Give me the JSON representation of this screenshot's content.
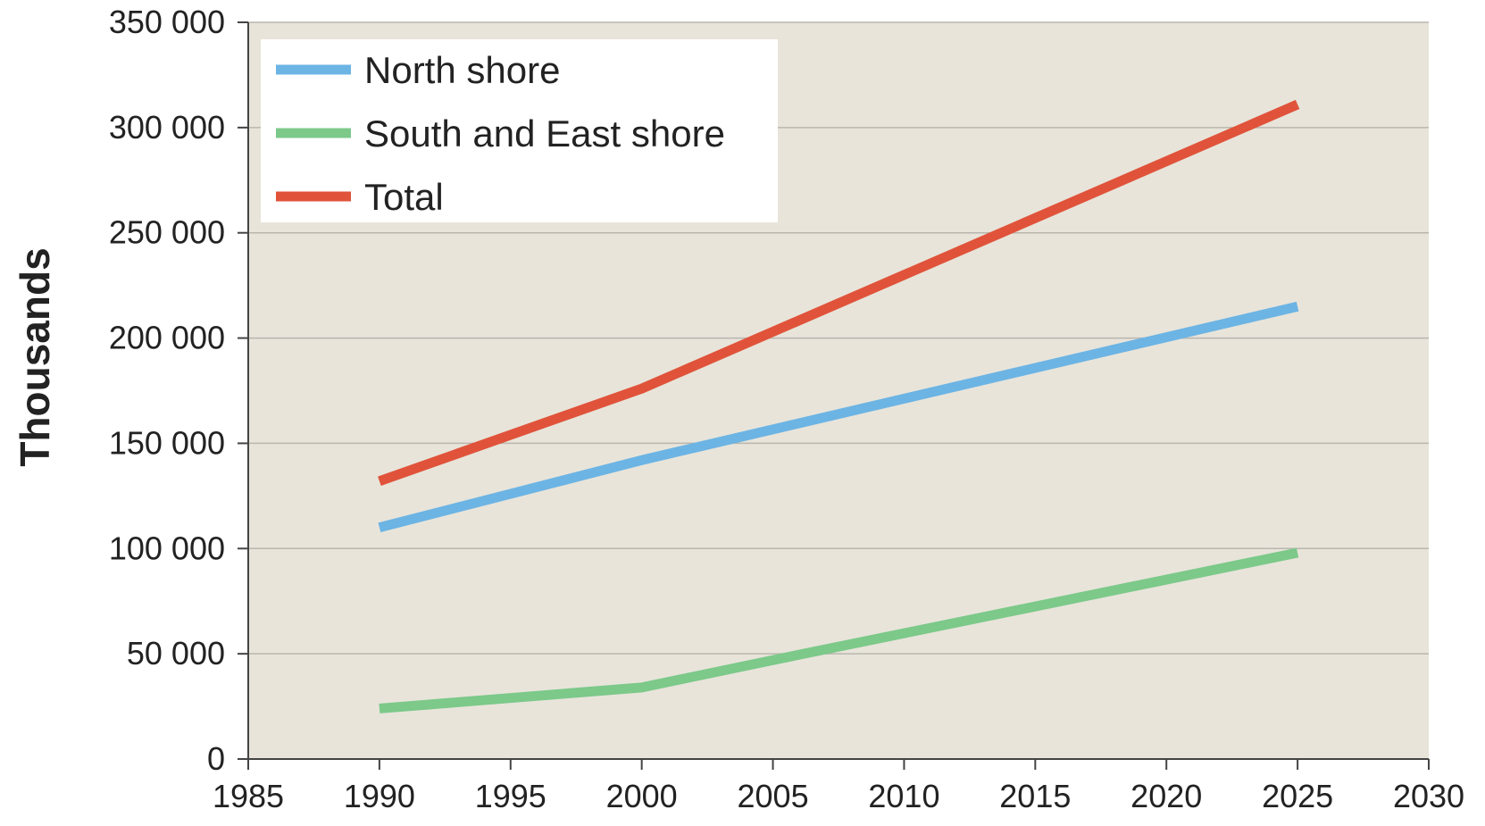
{
  "chart_data": {
    "type": "line",
    "title": "",
    "xlabel": "",
    "ylabel": "Thousands",
    "xlim": [
      1985,
      2030
    ],
    "ylim": [
      0,
      350000
    ],
    "x_ticks": [
      1985,
      1990,
      1995,
      2000,
      2005,
      2010,
      2015,
      2020,
      2025,
      2030
    ],
    "x_tick_labels": [
      "1985",
      "1990",
      "1995",
      "2000",
      "2005",
      "2010",
      "2015",
      "2020",
      "2025",
      "2030"
    ],
    "y_ticks": [
      0,
      50000,
      100000,
      150000,
      200000,
      250000,
      300000,
      350000
    ],
    "y_tick_labels": [
      "0",
      "50 000",
      "100 000",
      "150 000",
      "200 000",
      "250 000",
      "300 000",
      "350 000"
    ],
    "grid": "horizontal",
    "legend_position": "top-left",
    "plot_background": "#e8e4da",
    "series": [
      {
        "name": "North shore",
        "color": "#6cb4e4",
        "x": [
          1990,
          2000,
          2025
        ],
        "y": [
          110000,
          142000,
          215000
        ]
      },
      {
        "name": "South and East shore",
        "color": "#7cc98a",
        "x": [
          1990,
          2000,
          2005,
          2025
        ],
        "y": [
          24000,
          34000,
          47000,
          98000
        ]
      },
      {
        "name": "Total",
        "color": "#e0533a",
        "x": [
          1990,
          2000,
          2025
        ],
        "y": [
          132000,
          176000,
          311000
        ]
      }
    ]
  }
}
